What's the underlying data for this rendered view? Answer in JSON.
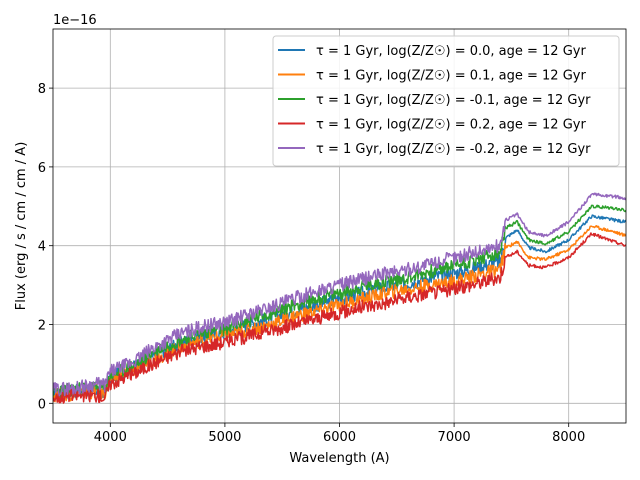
{
  "chart_data": {
    "type": "line",
    "title": "",
    "xlabel": "Wavelength (A)",
    "ylabel": "Flux (erg / s / cm / cm / A)",
    "offset_text": "1e−16",
    "xlim": [
      3500,
      8500
    ],
    "ylim": [
      -0.5,
      9.5
    ],
    "y_scale_exponent": -16,
    "xticks": [
      4000,
      5000,
      6000,
      7000,
      8000
    ],
    "yticks": [
      0,
      2,
      4,
      6,
      8
    ],
    "grid": true,
    "legend_position": "top-right",
    "series": [
      {
        "name": "τ = 1 Gyr, log(Z/Z☉) = 0.0, age = 12 Gyr",
        "color": "#1f77b4",
        "x": [
          3500,
          3700,
          3900,
          3950,
          4000,
          4200,
          4400,
          4600,
          4800,
          5000,
          5200,
          5400,
          5600,
          5800,
          6000,
          6200,
          6400,
          6600,
          6800,
          7000,
          7200,
          7400,
          7450,
          7550,
          7650,
          7800,
          8000,
          8200,
          8400,
          8500
        ],
        "y": [
          0.25,
          0.3,
          0.35,
          0.3,
          0.65,
          0.9,
          1.25,
          1.5,
          1.7,
          1.8,
          2.0,
          2.15,
          2.35,
          2.5,
          2.65,
          2.8,
          2.95,
          3.05,
          3.2,
          3.3,
          3.45,
          3.6,
          4.2,
          4.4,
          3.95,
          3.85,
          4.15,
          4.75,
          4.65,
          4.6
        ]
      },
      {
        "name": "τ = 1 Gyr, log(Z/Z☉) = 0.1, age = 12 Gyr",
        "color": "#ff7f0e",
        "x": [
          3500,
          3700,
          3900,
          3950,
          4000,
          4200,
          4400,
          4600,
          4800,
          5000,
          5200,
          5400,
          5600,
          5800,
          6000,
          6200,
          6400,
          6600,
          6800,
          7000,
          7200,
          7400,
          7450,
          7550,
          7650,
          7800,
          8000,
          8200,
          8400,
          8500
        ],
        "y": [
          0.2,
          0.25,
          0.3,
          0.25,
          0.6,
          0.85,
          1.15,
          1.4,
          1.6,
          1.7,
          1.85,
          2.0,
          2.2,
          2.35,
          2.5,
          2.65,
          2.8,
          2.9,
          3.0,
          3.1,
          3.25,
          3.4,
          3.95,
          4.1,
          3.7,
          3.65,
          3.9,
          4.5,
          4.35,
          4.25
        ]
      },
      {
        "name": "τ = 1 Gyr, log(Z/Z☉) = -0.1, age = 12 Gyr",
        "color": "#2ca02c",
        "x": [
          3500,
          3700,
          3900,
          3950,
          4000,
          4200,
          4400,
          4600,
          4800,
          5000,
          5200,
          5400,
          5600,
          5800,
          6000,
          6200,
          6400,
          6600,
          6800,
          7000,
          7200,
          7400,
          7450,
          7550,
          7650,
          7800,
          8000,
          8200,
          8400,
          8500
        ],
        "y": [
          0.3,
          0.35,
          0.4,
          0.35,
          0.7,
          0.95,
          1.35,
          1.6,
          1.8,
          1.9,
          2.1,
          2.3,
          2.5,
          2.65,
          2.8,
          2.95,
          3.1,
          3.2,
          3.35,
          3.5,
          3.65,
          3.8,
          4.45,
          4.6,
          4.15,
          4.05,
          4.35,
          5.0,
          4.95,
          4.9
        ]
      },
      {
        "name": "τ = 1 Gyr, log(Z/Z☉) = 0.2, age = 12 Gyr",
        "color": "#d62728",
        "x": [
          3500,
          3700,
          3900,
          3950,
          4000,
          4200,
          4400,
          4600,
          4800,
          5000,
          5200,
          5400,
          5600,
          5800,
          6000,
          6200,
          6400,
          6600,
          6800,
          7000,
          7200,
          7400,
          7450,
          7550,
          7650,
          7800,
          8000,
          8200,
          8400,
          8500
        ],
        "y": [
          0.15,
          0.2,
          0.2,
          0.15,
          0.5,
          0.75,
          1.05,
          1.3,
          1.45,
          1.55,
          1.7,
          1.85,
          2.0,
          2.15,
          2.3,
          2.45,
          2.55,
          2.7,
          2.8,
          2.9,
          3.05,
          3.2,
          3.7,
          3.85,
          3.5,
          3.45,
          3.7,
          4.3,
          4.1,
          4.0
        ]
      },
      {
        "name": "τ = 1 Gyr, log(Z/Z☉) = -0.2, age = 12 Gyr",
        "color": "#9467bd",
        "x": [
          3500,
          3700,
          3900,
          3950,
          4000,
          4200,
          4400,
          4600,
          4800,
          5000,
          5200,
          5400,
          5600,
          5800,
          6000,
          6200,
          6400,
          6600,
          6800,
          7000,
          7200,
          7400,
          7450,
          7550,
          7650,
          7800,
          8000,
          8200,
          8400,
          8500
        ],
        "y": [
          0.35,
          0.4,
          0.5,
          0.45,
          0.8,
          1.05,
          1.45,
          1.75,
          1.95,
          2.05,
          2.25,
          2.45,
          2.65,
          2.85,
          3.0,
          3.15,
          3.3,
          3.4,
          3.55,
          3.7,
          3.85,
          4.0,
          4.65,
          4.8,
          4.35,
          4.25,
          4.6,
          5.3,
          5.25,
          5.2
        ]
      }
    ]
  }
}
